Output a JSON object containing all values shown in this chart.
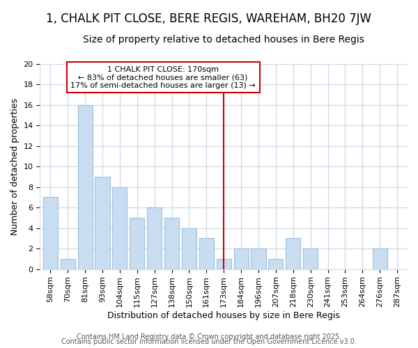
{
  "title": "1, CHALK PIT CLOSE, BERE REGIS, WAREHAM, BH20 7JW",
  "subtitle": "Size of property relative to detached houses in Bere Regis",
  "xlabel": "Distribution of detached houses by size in Bere Regis",
  "ylabel": "Number of detached properties",
  "bar_labels": [
    "58sqm",
    "70sqm",
    "81sqm",
    "93sqm",
    "104sqm",
    "115sqm",
    "127sqm",
    "138sqm",
    "150sqm",
    "161sqm",
    "173sqm",
    "184sqm",
    "196sqm",
    "207sqm",
    "218sqm",
    "230sqm",
    "241sqm",
    "253sqm",
    "264sqm",
    "276sqm",
    "287sqm"
  ],
  "bar_values": [
    7,
    1,
    16,
    9,
    8,
    5,
    6,
    5,
    4,
    3,
    1,
    2,
    2,
    1,
    3,
    2,
    0,
    0,
    0,
    2,
    0
  ],
  "bar_color": "#c8ddf0",
  "bar_edge_color": "#a0c0e0",
  "vline_x": 10,
  "vline_color": "#cc0000",
  "annotation_text": "1 CHALK PIT CLOSE: 170sqm\n← 83% of detached houses are smaller (63)\n17% of semi-detached houses are larger (13) →",
  "annotation_box_color": "#ffffff",
  "annotation_box_edge": "#cc0000",
  "ylim": [
    0,
    20
  ],
  "yticks": [
    0,
    2,
    4,
    6,
    8,
    10,
    12,
    14,
    16,
    18,
    20
  ],
  "background_color": "#ffffff",
  "grid_color": "#d0dce8",
  "footer_line1": "Contains HM Land Registry data © Crown copyright and database right 2025.",
  "footer_line2": "Contains public sector information licensed under the Open Government Licence v3.0.",
  "title_fontsize": 12,
  "subtitle_fontsize": 10,
  "tick_fontsize": 8,
  "ylabel_fontsize": 9,
  "xlabel_fontsize": 9,
  "footer_fontsize": 7
}
